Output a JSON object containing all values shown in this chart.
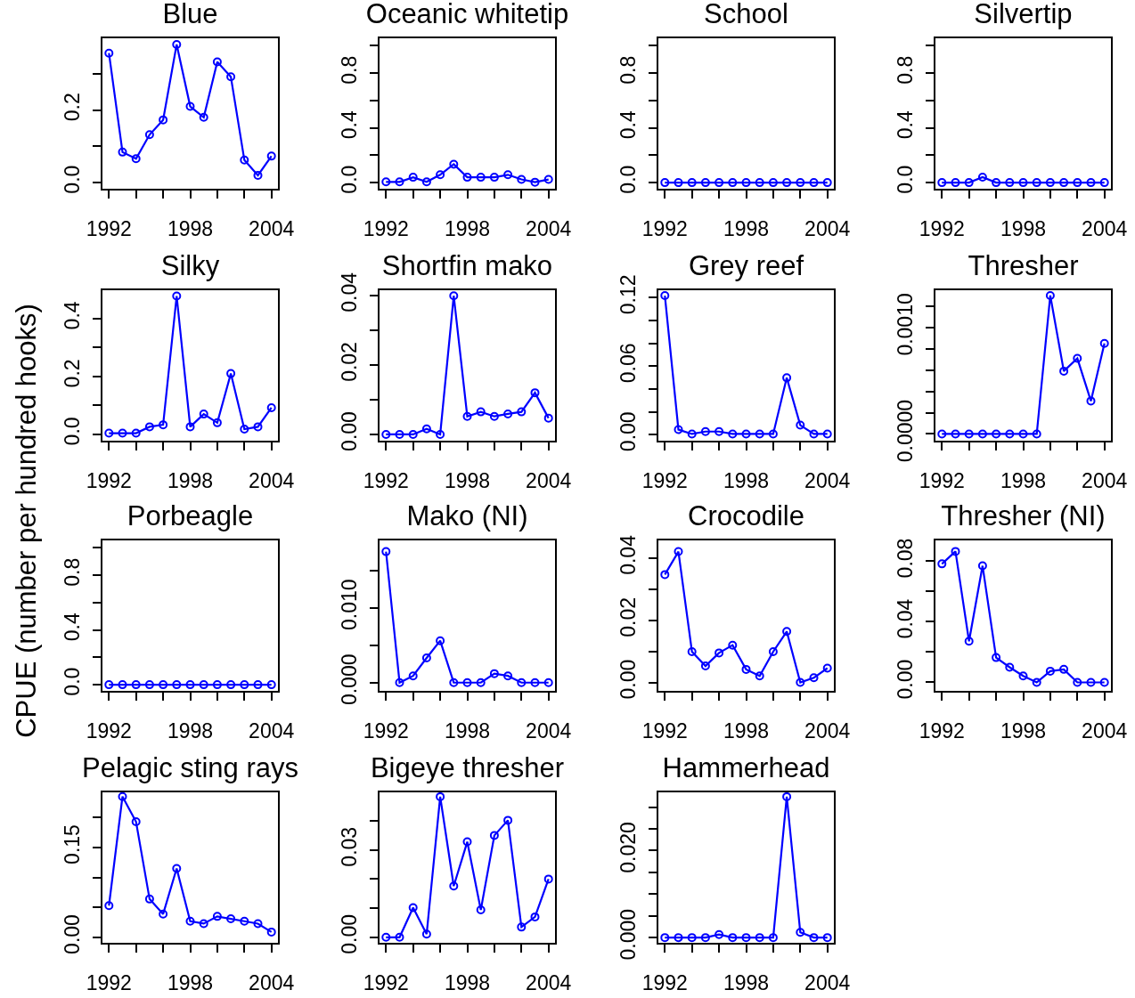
{
  "chart_data": [
    {
      "type": "line",
      "title": "Blue",
      "x": [
        1992,
        1993,
        1994,
        1995,
        1996,
        1997,
        1998,
        1999,
        2000,
        2001,
        2002,
        2003,
        2004
      ],
      "values": [
        0.357,
        0.084,
        0.066,
        0.132,
        0.173,
        0.381,
        0.21,
        0.18,
        0.333,
        0.292,
        0.062,
        0.02,
        0.073
      ],
      "color": "#0000ff",
      "marker": "circle",
      "line_style": "solid",
      "xlim": [
        1991.52,
        2004.48
      ],
      "xticks": [
        1992,
        {
          "value": 1994,
          "label": null
        },
        {
          "value": 1996,
          "label": null
        },
        1998,
        {
          "value": 2000,
          "label": null
        },
        {
          "value": 2002,
          "label": null
        },
        2004
      ],
      "ylim": [
        -0.017,
        0.398
      ],
      "yticks": [
        {
          "value": 0,
          "label": "0.0"
        },
        {
          "value": 0.1,
          "label": null
        },
        0.2,
        {
          "value": 0.3,
          "label": null
        }
      ]
    },
    {
      "type": "line",
      "title": "Oceanic whitetip",
      "x": [
        1992,
        1993,
        1994,
        1995,
        1996,
        1997,
        1998,
        1999,
        2000,
        2001,
        2002,
        2003,
        2004
      ],
      "values": [
        0.005,
        0.005,
        0.039,
        0.005,
        0.057,
        0.134,
        0.039,
        0.039,
        0.039,
        0.057,
        0.023,
        0.003,
        0.023
      ],
      "color": "#0000ff",
      "marker": "circle",
      "line_style": "solid",
      "xlim": [
        1991.52,
        2004.48
      ],
      "xticks": [
        1992,
        {
          "value": 1994,
          "label": null
        },
        {
          "value": 1996,
          "label": null
        },
        1998,
        {
          "value": 2000,
          "label": null
        },
        {
          "value": 2002,
          "label": null
        },
        2004
      ],
      "ylim": [
        -0.045,
        1.055
      ],
      "yticks": [
        {
          "value": 0,
          "label": "0.0"
        },
        {
          "value": 0.2,
          "label": null
        },
        0.4,
        {
          "value": 0.6,
          "label": null
        },
        0.8,
        {
          "value": 1,
          "label": null
        }
      ]
    },
    {
      "type": "line",
      "title": "School",
      "x": [
        1992,
        1993,
        1994,
        1995,
        1996,
        1997,
        1998,
        1999,
        2000,
        2001,
        2002,
        2003,
        2004
      ],
      "values": [
        0,
        0,
        0,
        0,
        0,
        0,
        0,
        0,
        0,
        0,
        0,
        0,
        0
      ],
      "color": "#0000ff",
      "marker": "circle",
      "line_style": "solid",
      "xlim": [
        1991.52,
        2004.48
      ],
      "xticks": [
        1992,
        {
          "value": 1994,
          "label": null
        },
        {
          "value": 1996,
          "label": null
        },
        1998,
        {
          "value": 2000,
          "label": null
        },
        {
          "value": 2002,
          "label": null
        },
        2004
      ],
      "ylim": [
        -0.045,
        1.055
      ],
      "yticks": [
        {
          "value": 0,
          "label": "0.0"
        },
        {
          "value": 0.2,
          "label": null
        },
        0.4,
        {
          "value": 0.6,
          "label": null
        },
        0.8,
        {
          "value": 1,
          "label": null
        }
      ]
    },
    {
      "type": "line",
      "title": "Silvertip",
      "x": [
        1992,
        1993,
        1994,
        1995,
        1996,
        1997,
        1998,
        1999,
        2000,
        2001,
        2002,
        2003,
        2004
      ],
      "values": [
        0,
        0,
        0,
        0.04,
        0,
        0,
        0,
        0,
        0,
        0,
        0,
        0,
        0
      ],
      "color": "#0000ff",
      "marker": "circle",
      "line_style": "solid",
      "xlim": [
        1991.52,
        2004.48
      ],
      "xticks": [
        1992,
        {
          "value": 1994,
          "label": null
        },
        {
          "value": 1996,
          "label": null
        },
        1998,
        {
          "value": 2000,
          "label": null
        },
        {
          "value": 2002,
          "label": null
        },
        2004
      ],
      "ylim": [
        -0.045,
        1.055
      ],
      "yticks": [
        {
          "value": 0,
          "label": "0.0"
        },
        {
          "value": 0.2,
          "label": null
        },
        0.4,
        {
          "value": 0.6,
          "label": null
        },
        0.8,
        {
          "value": 1,
          "label": null
        }
      ]
    },
    {
      "type": "line",
      "title": "Silky",
      "ylabel": "CPUE (number per hundred hooks)",
      "x": [
        1992,
        1993,
        1994,
        1995,
        1996,
        1997,
        1998,
        1999,
        2000,
        2001,
        2002,
        2003,
        2004
      ],
      "values": [
        0.004,
        0.004,
        0.004,
        0.026,
        0.033,
        0.478,
        0.026,
        0.07,
        0.04,
        0.21,
        0.018,
        0.026,
        0.092
      ],
      "color": "#0000ff",
      "marker": "circle",
      "line_style": "solid",
      "xlim": [
        1991.52,
        2004.48
      ],
      "xticks": [
        1992,
        {
          "value": 1994,
          "label": null
        },
        {
          "value": 1996,
          "label": null
        },
        1998,
        {
          "value": 2000,
          "label": null
        },
        {
          "value": 2002,
          "label": null
        },
        2004
      ],
      "ylim": [
        -0.022,
        0.498
      ],
      "yticks": [
        {
          "value": 0,
          "label": "0.0"
        },
        {
          "value": 0.1,
          "label": null
        },
        0.2,
        {
          "value": 0.3,
          "label": null
        },
        0.4
      ]
    },
    {
      "type": "line",
      "title": "Shortfin mako",
      "x": [
        1992,
        1993,
        1994,
        1995,
        1996,
        1997,
        1998,
        1999,
        2000,
        2001,
        2002,
        2003,
        2004
      ],
      "values": [
        0,
        0,
        0,
        0.0016,
        0,
        0.0399,
        0.0052,
        0.0065,
        0.0052,
        0.0059,
        0.0065,
        0.012,
        0.0047
      ],
      "color": "#0000ff",
      "marker": "circle",
      "line_style": "solid",
      "xlim": [
        1991.52,
        2004.48
      ],
      "xticks": [
        1992,
        {
          "value": 1994,
          "label": null
        },
        {
          "value": 1996,
          "label": null
        },
        1998,
        {
          "value": 2000,
          "label": null
        },
        {
          "value": 2002,
          "label": null
        },
        2004
      ],
      "ylim": [
        -0.0018,
        0.0415
      ],
      "yticks": [
        {
          "value": 0,
          "label": "0.00"
        },
        {
          "value": 0.01,
          "label": null
        },
        0.02,
        {
          "value": 0.03,
          "label": null
        },
        0.04
      ]
    },
    {
      "type": "line",
      "title": "Grey reef",
      "x": [
        1992,
        1993,
        1994,
        1995,
        1996,
        1997,
        1998,
        1999,
        2000,
        2001,
        2002,
        2003,
        2004
      ],
      "values": [
        0.1218,
        0.0044,
        0.0006,
        0.0027,
        0.0027,
        0.0006,
        0.0006,
        0.0006,
        0.0006,
        0.0498,
        0.0083,
        0.0006,
        0.0006
      ],
      "color": "#0000ff",
      "marker": "circle",
      "line_style": "solid",
      "xlim": [
        1991.52,
        2004.48
      ],
      "xticks": [
        1992,
        {
          "value": 1994,
          "label": null
        },
        {
          "value": 1996,
          "label": null
        },
        1998,
        {
          "value": 2000,
          "label": null
        },
        {
          "value": 2002,
          "label": null
        },
        2004
      ],
      "ylim": [
        -0.0053,
        0.1265
      ],
      "yticks": [
        {
          "value": 0,
          "label": "0.00"
        },
        {
          "value": 0.02,
          "label": null
        },
        {
          "value": 0.04,
          "label": null
        },
        0.06,
        {
          "value": 0.08,
          "label": null
        },
        {
          "value": 0.1,
          "label": null
        },
        0.12
      ]
    },
    {
      "type": "line",
      "title": "Thresher",
      "x": [
        1992,
        1993,
        1994,
        1995,
        1996,
        1997,
        1998,
        1999,
        2000,
        2001,
        2002,
        2003,
        2004
      ],
      "values": [
        0,
        0,
        0,
        0,
        0,
        0,
        0,
        0,
        0.0013,
        0.00059,
        0.00071,
        0.00031,
        0.00085
      ],
      "color": "#0000ff",
      "marker": "circle",
      "line_style": "solid",
      "xlim": [
        1991.52,
        2004.48
      ],
      "xticks": [
        1992,
        {
          "value": 1994,
          "label": null
        },
        {
          "value": 1996,
          "label": null
        },
        1998,
        {
          "value": 2000,
          "label": null
        },
        {
          "value": 2002,
          "label": null
        },
        2004
      ],
      "ylim": [
        -6.3e-05,
        0.00135
      ],
      "yticks": [
        {
          "value": 0,
          "label": "0.0000"
        },
        {
          "value": 0.0002,
          "label": null
        },
        {
          "value": 0.0004,
          "label": null
        },
        {
          "value": 0.0006,
          "label": null
        },
        {
          "value": 0.0008,
          "label": null
        },
        {
          "value": 0.001,
          "label": "0.0010"
        },
        {
          "value": 0.0012,
          "label": null
        }
      ]
    },
    {
      "type": "line",
      "title": "Porbeagle",
      "x": [
        1992,
        1993,
        1994,
        1995,
        1996,
        1997,
        1998,
        1999,
        2000,
        2001,
        2002,
        2003,
        2004
      ],
      "values": [
        0,
        0,
        0,
        0,
        0,
        0,
        0,
        0,
        0,
        0,
        0,
        0,
        0
      ],
      "color": "#0000ff",
      "marker": "circle",
      "line_style": "solid",
      "xlim": [
        1991.52,
        2004.48
      ],
      "xticks": [
        1992,
        {
          "value": 1994,
          "label": null
        },
        {
          "value": 1996,
          "label": null
        },
        1998,
        {
          "value": 2000,
          "label": null
        },
        {
          "value": 2002,
          "label": null
        },
        2004
      ],
      "ylim": [
        -0.045,
        1.055
      ],
      "yticks": [
        {
          "value": 0,
          "label": "0.0"
        },
        {
          "value": 0.2,
          "label": null
        },
        0.4,
        {
          "value": 0.6,
          "label": null
        },
        0.8,
        {
          "value": 1,
          "label": null
        }
      ]
    },
    {
      "type": "line",
      "title": "Mako (NI)",
      "x": [
        1992,
        1993,
        1994,
        1995,
        1996,
        1997,
        1998,
        1999,
        2000,
        2001,
        2002,
        2003,
        2004
      ],
      "values": [
        0.0175,
        0,
        0.0009,
        0.0033,
        0.0056,
        0,
        0,
        0,
        0.0012,
        0.0009,
        0,
        0,
        0
      ],
      "color": "#0000ff",
      "marker": "circle",
      "line_style": "solid",
      "xlim": [
        1991.52,
        2004.48
      ],
      "xticks": [
        1992,
        {
          "value": 1994,
          "label": null
        },
        {
          "value": 1996,
          "label": null
        },
        1998,
        {
          "value": 2000,
          "label": null
        },
        {
          "value": 2002,
          "label": null
        },
        2004
      ],
      "ylim": [
        -0.0011,
        0.019
      ],
      "yticks": [
        {
          "value": 0,
          "label": "0.000"
        },
        {
          "value": 0.005,
          "label": null
        },
        {
          "value": 0.01,
          "label": "0.010"
        },
        {
          "value": 0.015,
          "label": null
        }
      ]
    },
    {
      "type": "line",
      "title": "Crocodile",
      "x": [
        1992,
        1993,
        1994,
        1995,
        1996,
        1997,
        1998,
        1999,
        2000,
        2001,
        2002,
        2003,
        2004
      ],
      "values": [
        0.0347,
        0.0421,
        0.0099,
        0.0053,
        0.0095,
        0.012,
        0.0042,
        0.0021,
        0.0099,
        0.0164,
        0,
        0.0015,
        0.0046
      ],
      "color": "#0000ff",
      "marker": "circle",
      "line_style": "solid",
      "xlim": [
        1991.52,
        2004.48
      ],
      "xticks": [
        1992,
        {
          "value": 1994,
          "label": null
        },
        {
          "value": 1996,
          "label": null
        },
        1998,
        {
          "value": 2000,
          "label": null
        },
        {
          "value": 2002,
          "label": null
        },
        2004
      ],
      "ylim": [
        -0.0027,
        0.0457
      ],
      "yticks": [
        {
          "value": 0,
          "label": "0.00"
        },
        {
          "value": 0.01,
          "label": null
        },
        0.02,
        {
          "value": 0.03,
          "label": null
        },
        0.04
      ]
    },
    {
      "type": "line",
      "title": "Thresher (NI)",
      "x": [
        1992,
        1993,
        1994,
        1995,
        1996,
        1997,
        1998,
        1999,
        2000,
        2001,
        2002,
        2003,
        2004
      ],
      "values": [
        0.0783,
        0.0865,
        0.0272,
        0.077,
        0.0164,
        0.01,
        0.0043,
        0,
        0.0074,
        0.0086,
        0,
        0,
        0
      ],
      "color": "#0000ff",
      "marker": "circle",
      "line_style": "solid",
      "xlim": [
        1991.52,
        2004.48
      ],
      "xticks": [
        1992,
        {
          "value": 1994,
          "label": null
        },
        {
          "value": 1996,
          "label": null
        },
        1998,
        {
          "value": 2000,
          "label": null
        },
        {
          "value": 2002,
          "label": null
        },
        2004
      ],
      "ylim": [
        -0.0056,
        0.0938
      ],
      "yticks": [
        {
          "value": 0,
          "label": "0.00"
        },
        {
          "value": 0.02,
          "label": null
        },
        0.04,
        {
          "value": 0.06,
          "label": null
        },
        0.08
      ]
    },
    {
      "type": "line",
      "title": "Pelagic sting rays",
      "x": [
        1992,
        1993,
        1994,
        1995,
        1996,
        1997,
        1998,
        1999,
        2000,
        2001,
        2002,
        2003,
        2004
      ],
      "values": [
        0.053,
        0.235,
        0.193,
        0.064,
        0.039,
        0.115,
        0.027,
        0.023,
        0.035,
        0.031,
        0.027,
        0.023,
        0.009
      ],
      "color": "#0000ff",
      "marker": "circle",
      "line_style": "solid",
      "xlim": [
        1991.52,
        2004.48
      ],
      "xticks": [
        1992,
        {
          "value": 1994,
          "label": null
        },
        {
          "value": 1996,
          "label": null
        },
        1998,
        {
          "value": 2000,
          "label": null
        },
        {
          "value": 2002,
          "label": null
        },
        2004
      ],
      "ylim": [
        -0.009,
        0.242
      ],
      "yticks": [
        {
          "value": 0,
          "label": "0.00"
        },
        {
          "value": 0.05,
          "label": null
        },
        {
          "value": 0.1,
          "label": null
        },
        0.15,
        {
          "value": 0.2,
          "label": null
        }
      ]
    },
    {
      "type": "line",
      "title": "Bigeye thresher",
      "x": [
        1992,
        1993,
        1994,
        1995,
        1996,
        1997,
        1998,
        1999,
        2000,
        2001,
        2002,
        2003,
        2004
      ],
      "values": [
        0,
        0,
        0.0102,
        0.0011,
        0.0483,
        0.0176,
        0.0328,
        0.0094,
        0.035,
        0.0402,
        0.0035,
        0.007,
        0.02
      ],
      "color": "#0000ff",
      "marker": "circle",
      "line_style": "solid",
      "xlim": [
        1991.52,
        2004.48
      ],
      "xticks": [
        1992,
        {
          "value": 1994,
          "label": null
        },
        {
          "value": 1996,
          "label": null
        },
        1998,
        {
          "value": 2000,
          "label": null
        },
        {
          "value": 2002,
          "label": null
        },
        2004
      ],
      "ylim": [
        -0.0019,
        0.0498
      ],
      "yticks": [
        {
          "value": 0,
          "label": "0.00"
        },
        {
          "value": 0.01,
          "label": null
        },
        {
          "value": 0.02,
          "label": null
        },
        0.03,
        {
          "value": 0.04,
          "label": null
        }
      ]
    },
    {
      "type": "line",
      "title": "Hammerhead",
      "x": [
        1992,
        1993,
        1994,
        1995,
        1996,
        1997,
        1998,
        1999,
        2000,
        2001,
        2002,
        2003,
        2004
      ],
      "values": [
        0,
        0,
        0,
        0,
        0.0007,
        0,
        0,
        0,
        0,
        0.0324,
        0.0012,
        0,
        0
      ],
      "color": "#0000ff",
      "marker": "circle",
      "line_style": "solid",
      "xlim": [
        1991.52,
        2004.48
      ],
      "xticks": [
        1992,
        {
          "value": 1994,
          "label": null
        },
        {
          "value": 1996,
          "label": null
        },
        1998,
        {
          "value": 2000,
          "label": null
        },
        {
          "value": 2002,
          "label": null
        },
        2004
      ],
      "ylim": [
        -0.0012,
        0.0334
      ],
      "yticks": [
        {
          "value": 0,
          "label": "0.000"
        },
        {
          "value": 0.005,
          "label": null
        },
        {
          "value": 0.01,
          "label": null
        },
        {
          "value": 0.015,
          "label": null
        },
        {
          "value": 0.02,
          "label": "0.020"
        },
        {
          "value": 0.025,
          "label": null
        },
        {
          "value": 0.03,
          "label": null
        }
      ]
    }
  ]
}
